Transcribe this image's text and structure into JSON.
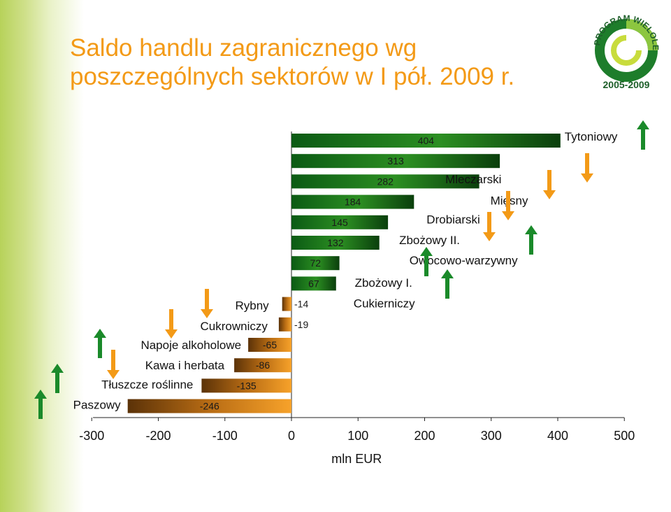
{
  "title": {
    "line1": "Saldo handlu zagranicznego wg",
    "line2": "poszczególnych sektorów w I pół. 2009 r."
  },
  "logo": {
    "text_top": "PROGRAM WIELOLETNI",
    "text_bottom": "2005-2009"
  },
  "colors": {
    "positive_bar": "#1f7a1f",
    "negative_bar": "#d9831a",
    "arrow_up": "#1a8a2a",
    "arrow_down": "#f39a17",
    "title": "#f39a17"
  },
  "chart_data": {
    "type": "bar",
    "orientation": "horizontal",
    "title": "Saldo handlu zagranicznego wg poszczególnych sektorów w I pół. 2009 r.",
    "xlabel": "mln EUR",
    "ylabel": "",
    "xlim": [
      -300,
      500
    ],
    "xticks": [
      -300,
      -200,
      -100,
      0,
      100,
      200,
      300,
      400,
      500
    ],
    "tick_labels": [
      "-300",
      "-200",
      "-100",
      "0",
      "100",
      "200",
      "300",
      "400",
      "500"
    ],
    "bars": [
      {
        "category": "Tytoniowy",
        "value": 404,
        "label": "404",
        "trend": "up"
      },
      {
        "category": "Mleczarski",
        "value": 313,
        "label": "313",
        "trend": "down"
      },
      {
        "category": "Mięsny",
        "value": 282,
        "label": "282",
        "trend": "down"
      },
      {
        "category": "Drobiarski",
        "value": 184,
        "label": "184",
        "trend": "down"
      },
      {
        "category": "Zbożowy II.",
        "value": 145,
        "label": "145",
        "trend": "down"
      },
      {
        "category": "Owocowo-warzywny",
        "value": 132,
        "label": "132",
        "trend": "up"
      },
      {
        "category": "Zbożowy I.",
        "value": 72,
        "label": "72",
        "trend": "up"
      },
      {
        "category": "Cukierniczy",
        "value": 67,
        "label": "67",
        "trend": "up"
      },
      {
        "category": "Rybny",
        "value": -14,
        "label": "-14",
        "trend": "down"
      },
      {
        "category": "Cukrowniczy",
        "value": -19,
        "label": "-19",
        "trend": "down"
      },
      {
        "category": "Napoje alkoholowe",
        "value": -65,
        "label": "-65",
        "trend": "up"
      },
      {
        "category": "Kawa i herbata",
        "value": -86,
        "label": "-86",
        "trend": "down"
      },
      {
        "category": "Tłuszcze roślinne",
        "value": -135,
        "label": "-135",
        "trend": "up"
      },
      {
        "category": "Paszowy",
        "value": -246,
        "label": "-246",
        "trend": "up"
      }
    ]
  }
}
